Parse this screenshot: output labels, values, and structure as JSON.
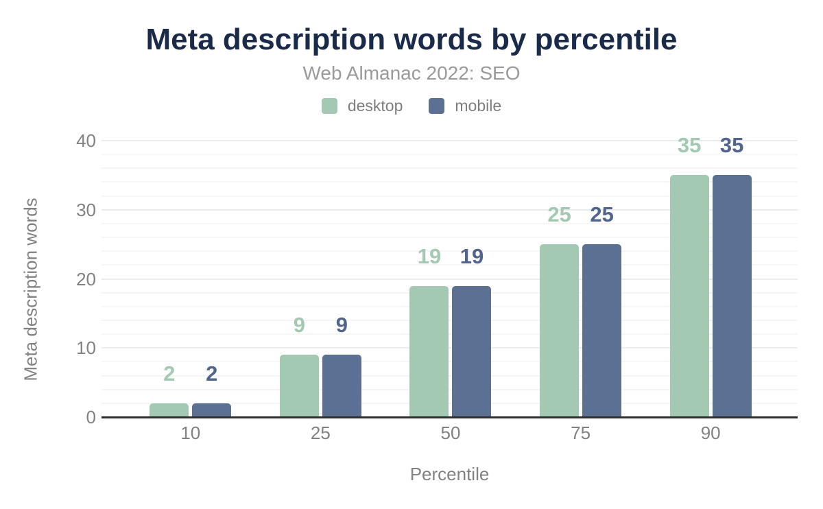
{
  "title": "Meta description words by percentile",
  "subtitle": "Web Almanac 2022: SEO",
  "legend": {
    "items": [
      {
        "label": "desktop",
        "color": "#a4c9b3"
      },
      {
        "label": "mobile",
        "color": "#5b7092"
      }
    ]
  },
  "chart_data": {
    "type": "bar",
    "title": "Meta description words by percentile",
    "subtitle": "Web Almanac 2022: SEO",
    "categories": [
      "10",
      "25",
      "50",
      "75",
      "90"
    ],
    "series": [
      {
        "name": "desktop",
        "color": "#a4c9b3",
        "label_color": "#a4c9b3",
        "values": [
          2,
          9,
          19,
          25,
          35
        ]
      },
      {
        "name": "mobile",
        "color": "#5b7092",
        "label_color": "#50648c",
        "values": [
          2,
          9,
          19,
          25,
          35
        ]
      }
    ],
    "xlabel": "Percentile",
    "ylabel": "Meta description words",
    "ylim": [
      0,
      40
    ],
    "yticks": [
      0,
      10,
      20,
      30,
      40
    ],
    "minor_grid_step": 2,
    "grid": true,
    "legend_position": "top",
    "bar_labels": true
  },
  "colors": {
    "background": "#ffffff",
    "title": "#1a2b49",
    "subtitle": "#9a9a9a",
    "axis_text": "#818181",
    "legend_text": "#7d7d7d",
    "grid_major": "#ececec",
    "grid_minor": "#f5f5f5",
    "axis_line": "#2d2d2d"
  }
}
